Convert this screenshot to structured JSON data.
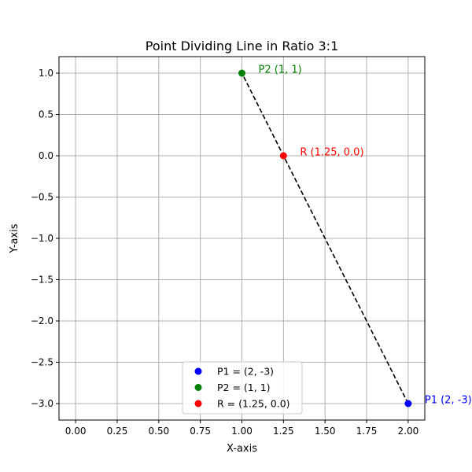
{
  "chart_data": {
    "type": "scatter",
    "title": "Point Dividing Line in Ratio 3:1",
    "xlabel": "X-axis",
    "ylabel": "Y-axis",
    "xlim": [
      -0.1,
      2.1
    ],
    "ylim": [
      -3.2,
      1.2
    ],
    "xticks": [
      0.0,
      0.25,
      0.5,
      0.75,
      1.0,
      1.25,
      1.5,
      1.75,
      2.0
    ],
    "xtick_labels": [
      "0.00",
      "0.25",
      "0.50",
      "0.75",
      "1.00",
      "1.25",
      "1.50",
      "1.75",
      "2.00"
    ],
    "yticks": [
      1.0,
      0.5,
      0.0,
      -0.5,
      -1.0,
      -1.5,
      -2.0,
      -2.5,
      -3.0
    ],
    "ytick_labels": [
      "1.0",
      "0.5",
      "0.0",
      "−0.5",
      "−1.0",
      "−1.5",
      "−2.0",
      "−2.5",
      "−3.0"
    ],
    "grid": true,
    "legend_position": "bottom-center",
    "line": {
      "style": "dashed",
      "color": "#000000",
      "points": [
        {
          "x": 2,
          "y": -3
        },
        {
          "x": 1,
          "y": 1
        }
      ]
    },
    "series": [
      {
        "name": "P1 = (2, -3)",
        "x": 2,
        "y": -3,
        "color": "#0000ff",
        "annotation": "P1 (2, -3)"
      },
      {
        "name": "P2 = (1, 1)",
        "x": 1,
        "y": 1,
        "color": "#008000",
        "annotation": "P2 (1, 1)"
      },
      {
        "name": "R = (1.25, 0.0)",
        "x": 1.25,
        "y": 0.0,
        "color": "#ff0000",
        "annotation": "R (1.25, 0.0)"
      }
    ]
  }
}
